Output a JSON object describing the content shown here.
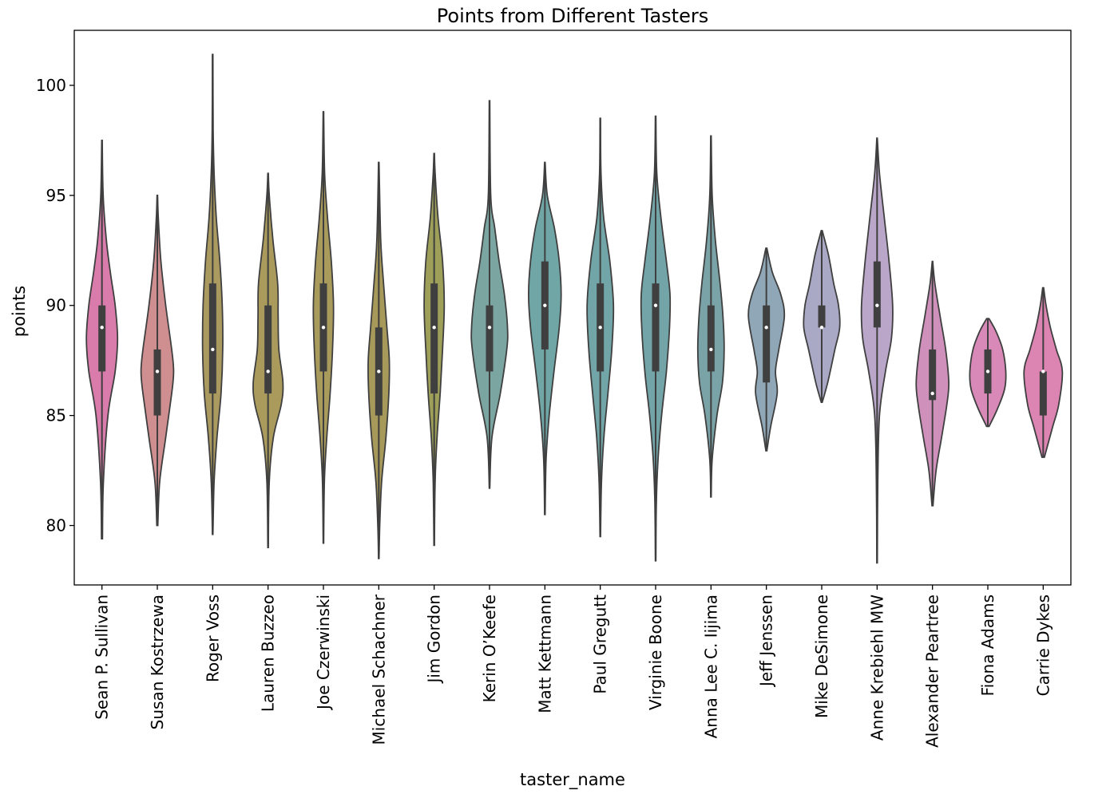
{
  "chart_data": {
    "type": "violin",
    "title": "Points from Different Tasters",
    "xlabel": "taster_name",
    "ylabel": "points",
    "ylim": [
      77.3,
      102.5
    ],
    "yticks": [
      80,
      85,
      90,
      95,
      100
    ],
    "grid": false,
    "legend": "none",
    "categories": [
      "Sean P. Sullivan",
      "Susan Kostrzewa",
      "Roger Voss",
      "Lauren Buzzeo",
      "Joe Czerwinski",
      "Michael Schachner",
      "Jim Gordon",
      "Kerin O’Keefe",
      "Matt Kettmann",
      "Paul Gregutt",
      "Virginie Boone",
      "Anna Lee C. Iijima",
      "Jeff Jenssen",
      "Mike DeSimone",
      "Anne Krebiehl MW",
      "Alexander Peartree",
      "Fiona Adams",
      "Carrie Dykes"
    ],
    "colors": [
      "#d97cab",
      "#cf8e90",
      "#ab9a5f",
      "#aa9b5c",
      "#a99b5c",
      "#a7995a",
      "#9e9f58",
      "#7ba5a0",
      "#70a6a6",
      "#72a5a7",
      "#73a4a8",
      "#7aa3a8",
      "#8fa7b6",
      "#a9a9c6",
      "#b9a6c9",
      "#cf91bb",
      "#d889b8",
      "#dc84b2"
    ],
    "stats": [
      {
        "min": 79.4,
        "q1": 87,
        "median": 89,
        "q3": 90,
        "max": 97.5,
        "density": [
          [
            79.4,
            0.02
          ],
          [
            82,
            0.06
          ],
          [
            85,
            0.25
          ],
          [
            87,
            0.55
          ],
          [
            88.5,
            0.65
          ],
          [
            90,
            0.55
          ],
          [
            91.5,
            0.35
          ],
          [
            93,
            0.18
          ],
          [
            95,
            0.05
          ],
          [
            97.5,
            0.01
          ]
        ]
      },
      {
        "min": 80,
        "q1": 85,
        "median": 87,
        "q3": 88,
        "max": 95,
        "density": [
          [
            80,
            0.02
          ],
          [
            82,
            0.1
          ],
          [
            84,
            0.35
          ],
          [
            86,
            0.6
          ],
          [
            87,
            0.68
          ],
          [
            88,
            0.6
          ],
          [
            90,
            0.35
          ],
          [
            92,
            0.15
          ],
          [
            94,
            0.04
          ],
          [
            95,
            0.01
          ]
        ]
      },
      {
        "min": 79.6,
        "q1": 86,
        "median": 88,
        "q3": 91,
        "max": 101.4,
        "density": [
          [
            79.6,
            0.01
          ],
          [
            82,
            0.06
          ],
          [
            84,
            0.18
          ],
          [
            86,
            0.35
          ],
          [
            88,
            0.42
          ],
          [
            90,
            0.4
          ],
          [
            92,
            0.3
          ],
          [
            94,
            0.15
          ],
          [
            96,
            0.06
          ],
          [
            98,
            0.02
          ],
          [
            101.4,
            0.01
          ]
        ]
      },
      {
        "min": 79,
        "q1": 86,
        "median": 87,
        "q3": 90,
        "max": 96,
        "density": [
          [
            79,
            0.01
          ],
          [
            82,
            0.05
          ],
          [
            84,
            0.22
          ],
          [
            85.5,
            0.55
          ],
          [
            86.5,
            0.62
          ],
          [
            88,
            0.45
          ],
          [
            89.5,
            0.42
          ],
          [
            91,
            0.4
          ],
          [
            93,
            0.2
          ],
          [
            95,
            0.05
          ],
          [
            96,
            0.01
          ]
        ]
      },
      {
        "min": 79.2,
        "q1": 87,
        "median": 89,
        "q3": 91,
        "max": 98.8,
        "density": [
          [
            79.2,
            0.01
          ],
          [
            82,
            0.04
          ],
          [
            84,
            0.14
          ],
          [
            86,
            0.28
          ],
          [
            88,
            0.38
          ],
          [
            90,
            0.42
          ],
          [
            92,
            0.33
          ],
          [
            94,
            0.17
          ],
          [
            96,
            0.05
          ],
          [
            98.8,
            0.01
          ]
        ]
      },
      {
        "min": 78.5,
        "q1": 85,
        "median": 87,
        "q3": 89,
        "max": 96.5,
        "density": [
          [
            78.5,
            0.01
          ],
          [
            80,
            0.04
          ],
          [
            82,
            0.12
          ],
          [
            84,
            0.3
          ],
          [
            86,
            0.42
          ],
          [
            87.5,
            0.44
          ],
          [
            89,
            0.34
          ],
          [
            91,
            0.2
          ],
          [
            93,
            0.08
          ],
          [
            96.5,
            0.01
          ]
        ]
      },
      {
        "min": 79.1,
        "q1": 86,
        "median": 89,
        "q3": 91,
        "max": 96.9,
        "density": [
          [
            79.1,
            0.01
          ],
          [
            82,
            0.04
          ],
          [
            84,
            0.12
          ],
          [
            86,
            0.25
          ],
          [
            88,
            0.35
          ],
          [
            90,
            0.42
          ],
          [
            92,
            0.35
          ],
          [
            94,
            0.16
          ],
          [
            96,
            0.04
          ],
          [
            96.9,
            0.01
          ]
        ]
      },
      {
        "min": 81.7,
        "q1": 87,
        "median": 89,
        "q3": 90,
        "max": 99.3,
        "density": [
          [
            81.7,
            0.01
          ],
          [
            84,
            0.1
          ],
          [
            86,
            0.45
          ],
          [
            88,
            0.72
          ],
          [
            89,
            0.75
          ],
          [
            90.5,
            0.62
          ],
          [
            92,
            0.4
          ],
          [
            93.5,
            0.22
          ],
          [
            95,
            0.05
          ],
          [
            99.3,
            0.01
          ]
        ]
      },
      {
        "min": 80.5,
        "q1": 88,
        "median": 90,
        "q3": 92,
        "max": 96.5,
        "density": [
          [
            80.5,
            0.01
          ],
          [
            83,
            0.05
          ],
          [
            85,
            0.18
          ],
          [
            87,
            0.38
          ],
          [
            89,
            0.6
          ],
          [
            90.5,
            0.68
          ],
          [
            92,
            0.6
          ],
          [
            93.5,
            0.4
          ],
          [
            95,
            0.1
          ],
          [
            96.5,
            0.01
          ]
        ]
      },
      {
        "min": 79.5,
        "q1": 87,
        "median": 89,
        "q3": 91,
        "max": 98.5,
        "density": [
          [
            79.5,
            0.01
          ],
          [
            82,
            0.05
          ],
          [
            84,
            0.15
          ],
          [
            86,
            0.32
          ],
          [
            88,
            0.48
          ],
          [
            90,
            0.55
          ],
          [
            92,
            0.4
          ],
          [
            94,
            0.14
          ],
          [
            96,
            0.03
          ],
          [
            98.5,
            0.01
          ]
        ]
      },
      {
        "min": 78.4,
        "q1": 87,
        "median": 90,
        "q3": 91,
        "max": 98.6,
        "density": [
          [
            78.4,
            0.01
          ],
          [
            81,
            0.03
          ],
          [
            83,
            0.1
          ],
          [
            85,
            0.25
          ],
          [
            87,
            0.45
          ],
          [
            89,
            0.58
          ],
          [
            90.5,
            0.6
          ],
          [
            92,
            0.45
          ],
          [
            94,
            0.22
          ],
          [
            96,
            0.05
          ],
          [
            98.6,
            0.01
          ]
        ]
      },
      {
        "min": 81.3,
        "q1": 87,
        "median": 88,
        "q3": 90,
        "max": 97.7,
        "density": [
          [
            81.3,
            0.01
          ],
          [
            83,
            0.05
          ],
          [
            85,
            0.25
          ],
          [
            86.5,
            0.48
          ],
          [
            88,
            0.55
          ],
          [
            89.5,
            0.5
          ],
          [
            91,
            0.38
          ],
          [
            93,
            0.18
          ],
          [
            95,
            0.05
          ],
          [
            97.7,
            0.01
          ]
        ]
      },
      {
        "min": 83.4,
        "q1": 86.5,
        "median": 89,
        "q3": 90,
        "max": 92.6,
        "density": [
          [
            83.4,
            0.02
          ],
          [
            84.5,
            0.18
          ],
          [
            86,
            0.45
          ],
          [
            87,
            0.38
          ],
          [
            88,
            0.52
          ],
          [
            89.5,
            0.75
          ],
          [
            90.5,
            0.6
          ],
          [
            91.5,
            0.25
          ],
          [
            92.6,
            0.02
          ]
        ]
      },
      {
        "min": 85.6,
        "q1": 89,
        "median": 89,
        "q3": 90,
        "max": 93.4,
        "density": [
          [
            85.6,
            0.02
          ],
          [
            86.5,
            0.25
          ],
          [
            88,
            0.55
          ],
          [
            89,
            0.75
          ],
          [
            90,
            0.7
          ],
          [
            91,
            0.5
          ],
          [
            92.3,
            0.28
          ],
          [
            93.4,
            0.02
          ]
        ]
      },
      {
        "min": 78.3,
        "q1": 89,
        "median": 90,
        "q3": 92,
        "max": 97.6,
        "density": [
          [
            78.3,
            0.01
          ],
          [
            82,
            0.03
          ],
          [
            85,
            0.1
          ],
          [
            87,
            0.35
          ],
          [
            88.5,
            0.6
          ],
          [
            90,
            0.65
          ],
          [
            92,
            0.5
          ],
          [
            94,
            0.3
          ],
          [
            96,
            0.1
          ],
          [
            97.6,
            0.01
          ]
        ]
      },
      {
        "min": 80.9,
        "q1": 85.7,
        "median": 86,
        "q3": 88,
        "max": 92,
        "density": [
          [
            80.9,
            0.02
          ],
          [
            82.5,
            0.15
          ],
          [
            84,
            0.38
          ],
          [
            85.5,
            0.6
          ],
          [
            86.5,
            0.68
          ],
          [
            88,
            0.55
          ],
          [
            89.5,
            0.32
          ],
          [
            91,
            0.1
          ],
          [
            92,
            0.01
          ]
        ]
      },
      {
        "min": 84.5,
        "q1": 86,
        "median": 87,
        "q3": 88,
        "max": 89.4,
        "density": [
          [
            84.5,
            0.05
          ],
          [
            85.3,
            0.4
          ],
          [
            86.2,
            0.7
          ],
          [
            87,
            0.75
          ],
          [
            88,
            0.62
          ],
          [
            88.8,
            0.35
          ],
          [
            89.4,
            0.05
          ]
        ]
      },
      {
        "min": 83.1,
        "q1": 85,
        "median": 87,
        "q3": 87,
        "max": 90.8,
        "density": [
          [
            83.1,
            0.05
          ],
          [
            84.5,
            0.4
          ],
          [
            85.5,
            0.65
          ],
          [
            87,
            0.8
          ],
          [
            88,
            0.55
          ],
          [
            89,
            0.3
          ],
          [
            90,
            0.12
          ],
          [
            90.8,
            0.02
          ]
        ]
      }
    ]
  }
}
